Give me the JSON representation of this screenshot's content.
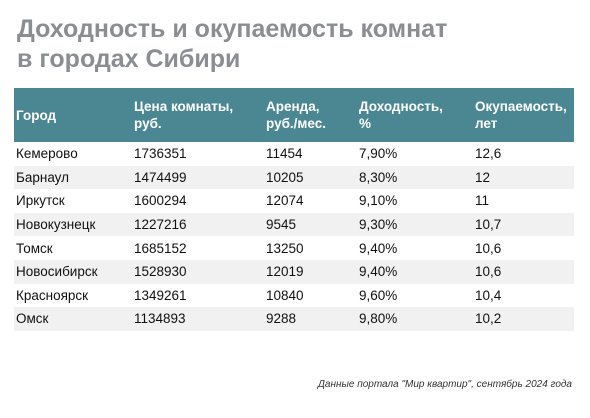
{
  "title": {
    "line1": "Доходность и окупаемость комнат",
    "line2": "в городах Сибири"
  },
  "table": {
    "headers": [
      [
        "Город"
      ],
      [
        "Цена комнаты,",
        "руб."
      ],
      [
        "Аренда,",
        "руб./мес."
      ],
      [
        "Доходность,",
        "%"
      ],
      [
        "Окупаемость,",
        "лет"
      ]
    ],
    "rows": [
      [
        "Кемерово",
        "1736351",
        "11454",
        "7,90%",
        "12,6"
      ],
      [
        "Барнаул",
        "1474499",
        "10205",
        "8,30%",
        "12"
      ],
      [
        "Иркутск",
        "1600294",
        "12074",
        "9,10%",
        "11"
      ],
      [
        "Новокузнецк",
        "1227216",
        "9545",
        "9,30%",
        "10,7"
      ],
      [
        "Томск",
        "1685152",
        "13250",
        "9,40%",
        "10,6"
      ],
      [
        "Новосибирск",
        "1528930",
        "12019",
        "9,40%",
        "10,6"
      ],
      [
        "Красноярск",
        "1349261",
        "10840",
        "9,60%",
        "10,4"
      ],
      [
        "Омск",
        "1134893",
        "9288",
        "9,80%",
        "10,2"
      ]
    ]
  },
  "source": "Данные портала \"Мир квартир\", сентябрь 2024 года",
  "colors": {
    "header_background": "#4a8793",
    "title_text": "#8a8d91",
    "stripe": "#f1f1f1"
  }
}
